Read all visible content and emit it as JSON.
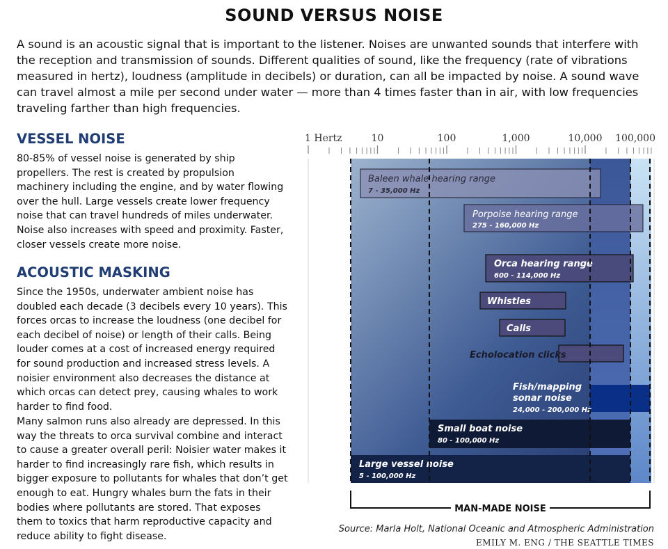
{
  "title": "SOUND VERSUS NOISE",
  "intro": "A sound is an acoustic signal that is important to the listener. Noises are unwanted sounds that interfere with the reception and transmission of sounds. Different qualities of sound, like the frequency (rate of vibrations measured in hertz), loudness (amplitude in decibels) or duration, can all be impacted by noise. A sound wave can travel almost a mile per second under water — more than 4 times faster than in air, with low frequencies traveling farther than high frequencies.",
  "vessel": {
    "heading": "VESSEL NOISE",
    "text": "80-85% of vessel noise is generated by ship propellers. The rest is created by propulsion machinery including the engine, and by water flowing over the hull. Large vessels create lower frequency noise that can travel hundreds of miles underwater. Noise also increases with speed and proximity. Faster, closer vessels create more noise."
  },
  "masking": {
    "heading": "ACOUSTIC MASKING",
    "text1": "Since the 1950s, underwater ambient noise has doubled each decade (3 decibels every 10 years). This forces orcas to increase the loudness (one decibel for each decibel of noise) or length of their calls. Being louder comes at a cost of increased energy required for sound production and increased stress levels. A noisier environment also decreases the distance at which orcas can detect prey, causing whales to work harder to find food.",
    "text2": "Many salmon runs also already are depressed. In this way the threats to orca survival combine and interact to cause a greater overall peril: Noisier water makes it harder to find increasingly rare fish, which results in bigger exposure to pollutants for whales that don’t get enough to eat. Hungry whales burn the fats in their bodies where pollutants are stored. That exposes them to toxics that harm reproductive capacity and reduce ability to fight disease."
  },
  "axis": {
    "ticks": [
      {
        "value": 1,
        "label": "1 Hertz"
      },
      {
        "value": 10,
        "label": "10"
      },
      {
        "value": 100,
        "label": "100"
      },
      {
        "value": 1000,
        "label": "1,000"
      },
      {
        "value": 10000,
        "label": "10,000"
      },
      {
        "value": 100000,
        "label": "100,000"
      }
    ],
    "scale": "log"
  },
  "ranges": [
    {
      "name": "Baleen whale hearing range",
      "range_text": "7 - 35,000 Hz",
      "low": 7,
      "high": 35000,
      "kind": "hearing"
    },
    {
      "name": "Porpoise hearing range",
      "range_text": "275 - 160,000 Hz",
      "low": 275,
      "high": 160000,
      "kind": "hearing"
    },
    {
      "name": "Orca hearing range",
      "range_text": "600 - 114,000 Hz",
      "low": 600,
      "high": 114000,
      "kind": "hearing"
    },
    {
      "name": "Whistles",
      "range_text": "",
      "low": 500,
      "high": 15000,
      "kind": "orca-sound"
    },
    {
      "name": "Calls",
      "range_text": "",
      "low": 1000,
      "high": 15000,
      "kind": "orca-sound"
    },
    {
      "name": "Echolocation clicks",
      "range_text": "",
      "low": 18000,
      "high": 100000,
      "kind": "orca-sound"
    },
    {
      "name": "Fish/mapping sonar noise",
      "range_text": "24,000 - 200,000 Hz",
      "low": 24000,
      "high": 200000,
      "kind": "noise"
    },
    {
      "name": "Small boat noise",
      "range_text": "80 - 100,000 Hz",
      "low": 80,
      "high": 100000,
      "kind": "noise"
    },
    {
      "name": "Large vessel noise",
      "range_text": "5 - 100,000 Hz",
      "low": 5,
      "high": 100000,
      "kind": "noise"
    }
  ],
  "bracket_label": "MAN-MADE NOISE",
  "source": "Source: Marla Holt, National Oceanic and Atmospheric Administration",
  "credit": "EMILY M. ENG / THE SEATTLE TIMES",
  "colors": {
    "heading": "#1f3d73",
    "dark_navy": "#0e1c3a",
    "sonar": "#0a2f86"
  }
}
